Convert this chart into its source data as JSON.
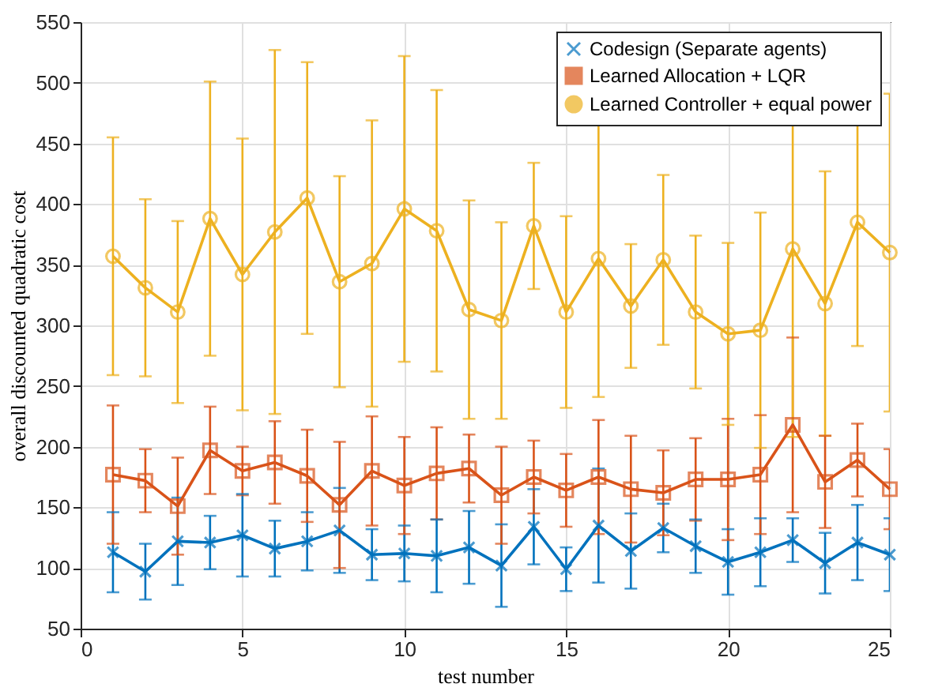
{
  "chart_data": {
    "type": "line",
    "xlabel": "test number",
    "ylabel": "overall discounted quadratic cost",
    "x": [
      1,
      2,
      3,
      4,
      5,
      6,
      7,
      8,
      9,
      10,
      11,
      12,
      13,
      14,
      15,
      16,
      17,
      18,
      19,
      20,
      21,
      22,
      23,
      24,
      25
    ],
    "xlim": [
      0,
      25
    ],
    "xticks": [
      0,
      5,
      10,
      15,
      20,
      25
    ],
    "ylim": [
      50,
      550
    ],
    "yticks": [
      50,
      100,
      150,
      200,
      250,
      300,
      350,
      400,
      450,
      500,
      550
    ],
    "grid": true,
    "legend": "top right",
    "line_style": "solid",
    "series": [
      {
        "name": "Codesign (Separate agents)",
        "color": "#0072bd",
        "marker": "cross",
        "values": [
          113,
          97,
          122,
          121,
          127,
          116,
          122,
          131,
          111,
          112,
          110,
          117,
          102,
          134,
          99,
          135,
          114,
          133,
          118,
          105,
          113,
          123,
          104,
          121,
          111
        ],
        "errors": [
          33,
          23,
          36,
          22,
          34,
          23,
          24,
          35,
          21,
          23,
          30,
          30,
          34,
          31,
          18,
          47,
          31,
          20,
          22,
          27,
          28,
          18,
          25,
          31,
          30
        ]
      },
      {
        "name": "Learned Allocation + LQR",
        "color": "#d95319",
        "marker": "square",
        "values": [
          177,
          172,
          151,
          197,
          180,
          187,
          176,
          152,
          180,
          168,
          178,
          182,
          160,
          175,
          164,
          175,
          165,
          162,
          173,
          173,
          177,
          218,
          171,
          189,
          165
        ],
        "errors": [
          57,
          26,
          40,
          36,
          20,
          34,
          38,
          52,
          45,
          40,
          38,
          28,
          40,
          30,
          30,
          47,
          44,
          35,
          34,
          50,
          49,
          72,
          38,
          30,
          33
        ]
      },
      {
        "name": "Learned Controller + equal power",
        "color": "#edb120",
        "marker": "circle",
        "values": [
          357,
          331,
          311,
          388,
          342,
          377,
          405,
          336,
          351,
          396,
          378,
          313,
          304,
          382,
          311,
          355,
          316,
          354,
          311,
          293,
          296,
          363,
          318,
          385,
          360
        ],
        "errors": [
          98,
          73,
          75,
          113,
          112,
          150,
          112,
          87,
          118,
          126,
          116,
          90,
          81,
          52,
          79,
          114,
          51,
          70,
          63,
          75,
          97,
          155,
          109,
          102,
          131
        ]
      }
    ]
  }
}
